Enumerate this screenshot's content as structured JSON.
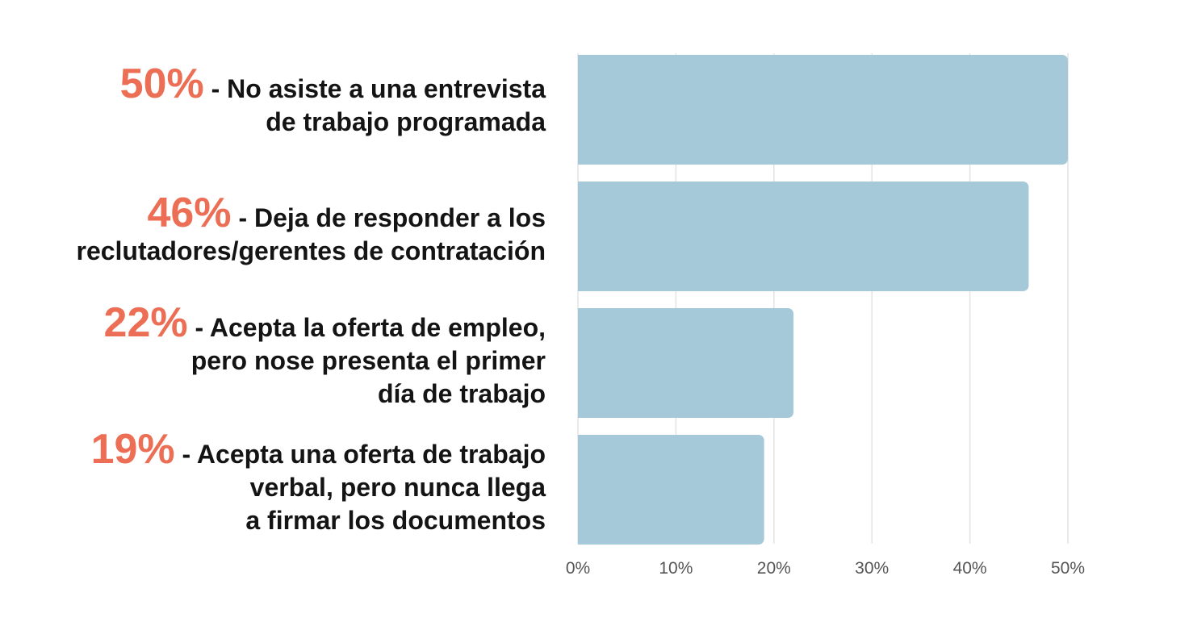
{
  "colors": {
    "bar": "#a5c9d8",
    "accent": "#ec6e55",
    "grid": "#e3e3e3",
    "tick": "#555555",
    "text": "#141414"
  },
  "chart_data": {
    "type": "bar",
    "orientation": "horizontal",
    "categories": [
      {
        "pct": "50%",
        "lines": [
          "- No asiste a una entrevista",
          "de trabajo programada"
        ]
      },
      {
        "pct": "46%",
        "lines": [
          "- Deja de responder a los",
          "reclutadores/gerentes de contratación"
        ]
      },
      {
        "pct": "22%",
        "lines": [
          "- Acepta la oferta de empleo,",
          "pero nose presenta el primer",
          "día de trabajo"
        ]
      },
      {
        "pct": "19%",
        "lines": [
          "- Acepta una oferta de trabajo",
          "verbal, pero nunca llega",
          "a firmar los documentos"
        ]
      }
    ],
    "values": [
      50,
      46,
      22,
      19
    ],
    "xlim": [
      0,
      50
    ],
    "xticks": [
      "0%",
      "10%",
      "20%",
      "30%",
      "40%",
      "50%"
    ],
    "grid": true,
    "legend": "none"
  }
}
